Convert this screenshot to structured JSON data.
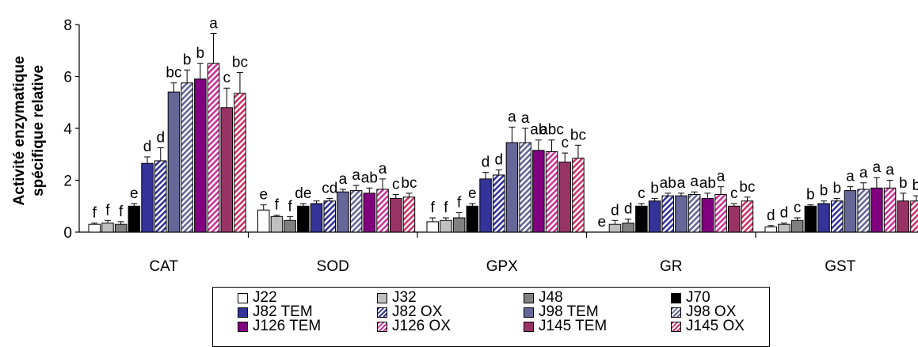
{
  "chart_data": {
    "type": "bar",
    "ylabel_line1": "Activité enzymatique",
    "ylabel_line2": "spécifique relative",
    "ylim": [
      0,
      8
    ],
    "yticks": [
      "0",
      "2",
      "4",
      "6",
      "8"
    ],
    "grid": false,
    "legend_position": "bottom",
    "categories": [
      "CAT",
      "SOD",
      "GPX",
      "GR",
      "GST"
    ],
    "series": [
      {
        "name": "J22",
        "color": "#ffffff",
        "pattern": "solid",
        "values": [
          0.3,
          0.85,
          0.4,
          0.0,
          0.2
        ],
        "errors": [
          0.05,
          0.2,
          0.15,
          0.0,
          0.05
        ],
        "letters": [
          "f",
          "e",
          "f",
          "e",
          "d"
        ]
      },
      {
        "name": "J32",
        "color": "#c0c0c0",
        "pattern": "solid",
        "values": [
          0.35,
          0.6,
          0.45,
          0.3,
          0.3
        ],
        "errors": [
          0.1,
          0.05,
          0.1,
          0.15,
          0.05
        ],
        "letters": [
          "f",
          "f",
          "f",
          "d",
          "d"
        ]
      },
      {
        "name": "J48",
        "color": "#808080",
        "pattern": "solid",
        "values": [
          0.3,
          0.45,
          0.55,
          0.35,
          0.45
        ],
        "errors": [
          0.1,
          0.15,
          0.2,
          0.15,
          0.1
        ],
        "letters": [
          "f",
          "f",
          "f",
          "d",
          "c"
        ]
      },
      {
        "name": "J70",
        "color": "#000000",
        "pattern": "solid",
        "values": [
          1.0,
          1.0,
          1.0,
          1.0,
          1.0
        ],
        "errors": [
          0.1,
          0.1,
          0.1,
          0.1,
          0.05
        ],
        "letters": [
          "e",
          "de",
          "e",
          "c",
          "b"
        ]
      },
      {
        "name": "J82 TEM",
        "color": "#333399",
        "pattern": "solid",
        "values": [
          2.65,
          1.1,
          2.05,
          1.2,
          1.1
        ],
        "errors": [
          0.25,
          0.1,
          0.25,
          0.1,
          0.1
        ],
        "letters": [
          "d",
          "",
          "d",
          "b",
          "b"
        ]
      },
      {
        "name": "J82 OX",
        "color": "#333399",
        "pattern": "hatch",
        "values": [
          2.75,
          1.2,
          2.2,
          1.4,
          1.2
        ],
        "errors": [
          0.5,
          0.1,
          0.2,
          0.1,
          0.1
        ],
        "letters": [
          "d",
          "cd",
          "d",
          "ab",
          "b"
        ]
      },
      {
        "name": "J98 TEM",
        "color": "#666699",
        "pattern": "solid",
        "values": [
          5.4,
          1.55,
          3.45,
          1.4,
          1.6
        ],
        "errors": [
          0.35,
          0.1,
          0.6,
          0.1,
          0.15
        ],
        "letters": [
          "bc",
          "a",
          "a",
          "a",
          "a"
        ]
      },
      {
        "name": "J98 OX",
        "color": "#666699",
        "pattern": "hatch",
        "values": [
          5.75,
          1.6,
          3.45,
          1.45,
          1.65
        ],
        "errors": [
          0.5,
          0.2,
          0.55,
          0.1,
          0.25
        ],
        "letters": [
          "b",
          "a",
          "a",
          "a",
          "a"
        ]
      },
      {
        "name": "J126 TEM",
        "color": "#800080",
        "pattern": "solid",
        "values": [
          5.9,
          1.5,
          3.15,
          1.3,
          1.7
        ],
        "errors": [
          0.6,
          0.2,
          0.4,
          0.2,
          0.4
        ],
        "letters": [
          "b",
          "ab",
          "ab",
          "ab",
          "a"
        ]
      },
      {
        "name": "J126 OX",
        "color": "#cc3399",
        "pattern": "hatch",
        "values": [
          6.5,
          1.65,
          3.1,
          1.45,
          1.7
        ],
        "errors": [
          1.15,
          0.4,
          0.45,
          0.3,
          0.3
        ],
        "letters": [
          "a",
          "a",
          "abc",
          "a",
          "a"
        ]
      },
      {
        "name": "J145 TEM",
        "color": "#993366",
        "pattern": "solid",
        "values": [
          4.8,
          1.3,
          2.7,
          1.0,
          1.2
        ],
        "errors": [
          0.75,
          0.15,
          0.35,
          0.1,
          0.3
        ],
        "letters": [
          "c",
          "c",
          "c",
          "c",
          "b"
        ]
      },
      {
        "name": "J145 OX",
        "color": "#cc3366",
        "pattern": "hatch",
        "values": [
          5.35,
          1.35,
          2.85,
          1.2,
          1.2
        ],
        "errors": [
          0.8,
          0.15,
          0.5,
          0.15,
          0.2
        ],
        "letters": [
          "bc",
          "bc",
          "bc",
          "bc",
          "b"
        ]
      }
    ]
  }
}
